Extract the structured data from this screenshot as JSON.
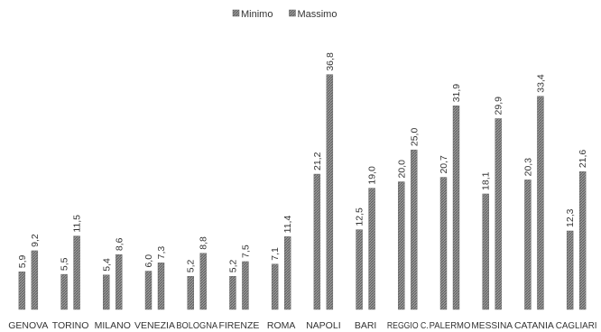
{
  "chart_data": {
    "type": "bar",
    "categories": [
      "GENOVA",
      "TORINO",
      "MILANO",
      "VENEZIA",
      "BOLOGNA",
      "FIRENZE",
      "ROMA",
      "NAPOLI",
      "BARI",
      "REGGIO C.",
      "PALERMO",
      "MESSINA",
      "CATANIA",
      "CAGLIARI"
    ],
    "series": [
      {
        "name": "Minimo",
        "values": [
          5.9,
          5.5,
          5.4,
          6.0,
          5.2,
          5.2,
          7.1,
          21.2,
          12.5,
          20.0,
          20.7,
          18.1,
          20.3,
          12.3
        ]
      },
      {
        "name": "Massimo",
        "values": [
          9.2,
          11.5,
          8.6,
          7.3,
          8.8,
          7.5,
          11.4,
          36.8,
          19.0,
          25.0,
          31.9,
          29.9,
          33.4,
          21.6
        ]
      }
    ],
    "data_labels": {
      "Minimo": [
        "5,9",
        "5,5",
        "5,4",
        "6,0",
        "5,2",
        "5,2",
        "7,1",
        "21,2",
        "12,5",
        "20,0",
        "20,7",
        "18,1",
        "20,3",
        "12,3"
      ],
      "Massimo": [
        "9,2",
        "11,5",
        "8,6",
        "7,3",
        "8,8",
        "7,5",
        "11,4",
        "36,8",
        "19,0",
        "25,0",
        "31,9",
        "29,9",
        "33,4",
        "21,6"
      ]
    },
    "title": "",
    "xlabel": "",
    "ylabel": "",
    "ylim": [
      0,
      40
    ],
    "legend_position": "top-center",
    "grid": false,
    "colors": {
      "bar": "#8c8c8c",
      "bar_stroke": "#5a5a5a",
      "text": "#333333"
    }
  }
}
